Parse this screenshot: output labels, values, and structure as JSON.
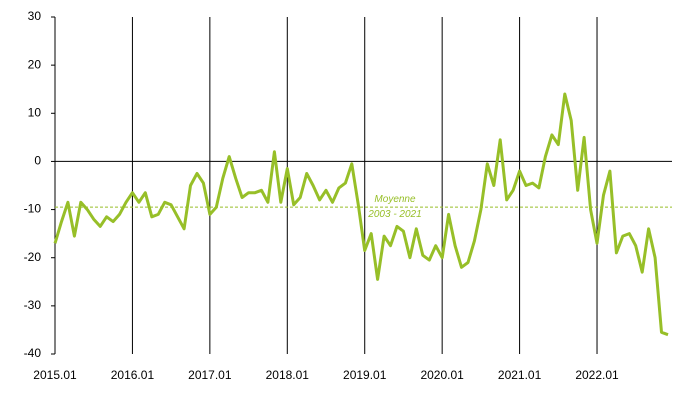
{
  "chart_data": {
    "type": "line",
    "categories": [
      "2015.01",
      null,
      null,
      null,
      null,
      null,
      null,
      null,
      null,
      null,
      null,
      null,
      "2016.01",
      null,
      null,
      null,
      null,
      null,
      null,
      null,
      null,
      null,
      null,
      null,
      "2017.01",
      null,
      null,
      null,
      null,
      null,
      null,
      null,
      null,
      null,
      null,
      null,
      "2018.01",
      null,
      null,
      null,
      null,
      null,
      null,
      null,
      null,
      null,
      null,
      null,
      "2019.01",
      null,
      null,
      null,
      null,
      null,
      null,
      null,
      null,
      null,
      null,
      null,
      "2020.01",
      null,
      null,
      null,
      null,
      null,
      null,
      null,
      null,
      null,
      null,
      null,
      "2021.01",
      null,
      null,
      null,
      null,
      null,
      null,
      null,
      null,
      null,
      null,
      null,
      "2022.01",
      null,
      null,
      null,
      null,
      null,
      null,
      null,
      null,
      null,
      null,
      null
    ],
    "series": [
      {
        "color": "#97bf28",
        "values": [
          -17,
          -12.5,
          -8.5,
          -15.5,
          -8.5,
          -10,
          -12,
          -13.5,
          -11.5,
          -12.5,
          -11,
          -8.5,
          -6.5,
          -8.5,
          -6.5,
          -11.5,
          -11,
          -8.5,
          -9,
          -11.5,
          -14,
          -5,
          -2.5,
          -4.5,
          -11,
          -9.5,
          -3.5,
          1,
          -3.5,
          -7.5,
          -6.5,
          -6.5,
          -6,
          -8.5,
          2,
          -8.5,
          -1.5,
          -9,
          -7.5,
          -2.5,
          -5,
          -8,
          -6,
          -8.5,
          -5.5,
          -4.5,
          -0.5,
          -9,
          -18.5,
          -15,
          -24.5,
          -15.5,
          -17.5,
          -13.5,
          -14.5,
          -20,
          -14,
          -19.5,
          -20.5,
          -17.5,
          -20,
          -11,
          -17.5,
          -22,
          -21,
          -16.5,
          -10,
          -0.5,
          -5,
          4.5,
          -8,
          -6,
          -2,
          -5,
          -4.5,
          -5.5,
          1,
          5.5,
          3.5,
          14,
          8.5,
          -6,
          5,
          -10,
          -17,
          -7,
          -2,
          -19,
          -15.5,
          -15,
          -17.5,
          -23,
          -14,
          -20,
          -35.5,
          -36
        ]
      }
    ],
    "average": {
      "value": -9.5,
      "label": [
        "Moyenne",
        "2003 - 2021"
      ]
    },
    "ylim": [
      -40,
      30
    ],
    "yticks": [
      -40,
      -30,
      -20,
      -10,
      0,
      10,
      20,
      30
    ]
  }
}
